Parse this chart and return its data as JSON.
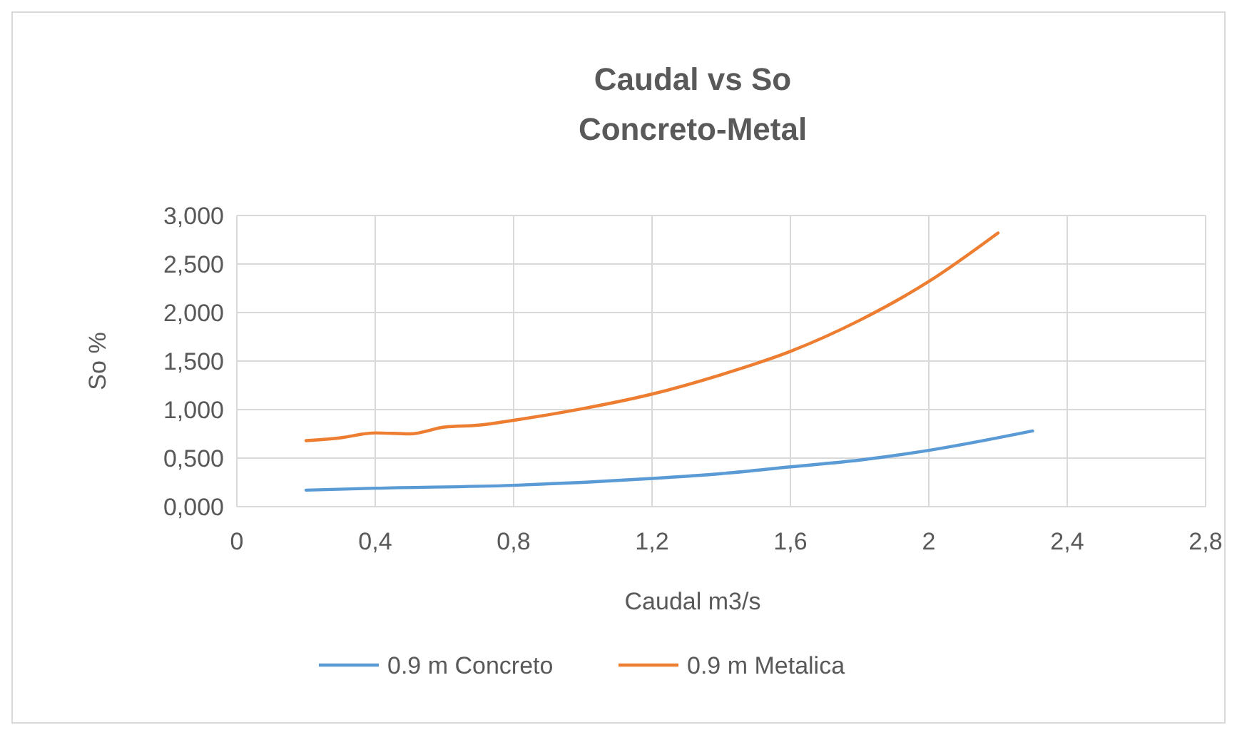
{
  "chart_data": {
    "type": "line",
    "title": "Caudal vs So",
    "subtitle": "Concreto-Metal",
    "xlabel": "Caudal m3/s",
    "ylabel": "So %",
    "xlim": [
      0,
      2.8
    ],
    "xticks": [
      0,
      {
        "value": 0.4,
        "label": "0,4"
      },
      {
        "value": 0.8,
        "label": "0,8"
      },
      {
        "value": 1.2,
        "label": "1,2"
      },
      {
        "value": 1.6,
        "label": "1,6"
      },
      2,
      {
        "value": 2.4,
        "label": "2,4"
      },
      {
        "value": 2.8,
        "label": "2,8"
      }
    ],
    "ylim": [
      0,
      3
    ],
    "yticks": [
      {
        "value": 0,
        "label": "0,000"
      },
      {
        "value": 0.5,
        "label": "0,500"
      },
      {
        "value": 1,
        "label": "1,000"
      },
      {
        "value": 1.5,
        "label": "1,500"
      },
      {
        "value": 2,
        "label": "2,000"
      },
      {
        "value": 2.5,
        "label": "2,500"
      },
      {
        "value": 3,
        "label": "3,000"
      }
    ],
    "grid": true,
    "legend": "bottom",
    "marker": "none",
    "line_style": "solid",
    "series": [
      {
        "name": "0.9 m Concreto",
        "color": "#5b9bd5",
        "x": [
          0.2,
          0.4,
          0.8,
          1.0,
          1.2,
          1.4,
          1.6,
          1.8,
          2.0,
          2.3
        ],
        "values": [
          0.17,
          0.19,
          0.22,
          0.25,
          0.29,
          0.34,
          0.41,
          0.48,
          0.58,
          0.78
        ]
      },
      {
        "name": "0.9 m Metalica",
        "color": "#ed7d31",
        "x": [
          0.2,
          0.3,
          0.4,
          0.5,
          0.6,
          0.7,
          0.8,
          1.0,
          1.2,
          1.4,
          1.6,
          1.8,
          2.0,
          2.2
        ],
        "values": [
          0.68,
          0.71,
          0.76,
          0.75,
          0.82,
          0.84,
          0.89,
          1.01,
          1.16,
          1.36,
          1.6,
          1.92,
          2.32,
          2.82
        ]
      }
    ]
  }
}
